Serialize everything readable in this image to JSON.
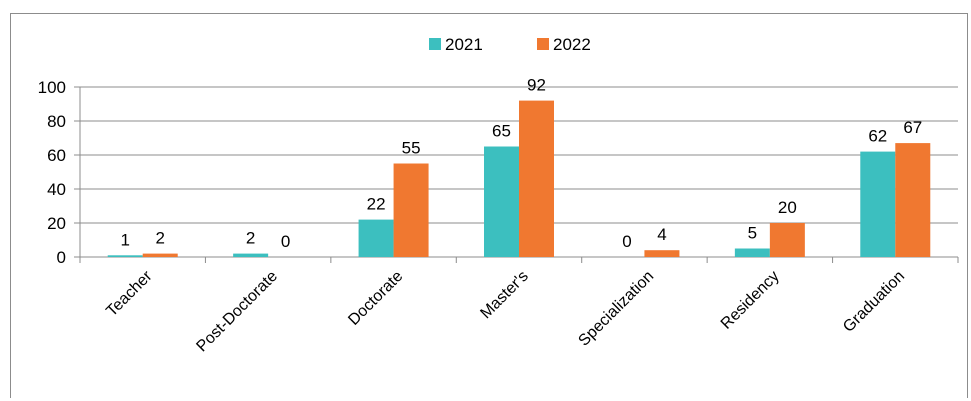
{
  "chart_data": {
    "type": "bar",
    "categories": [
      "Teacher",
      "Post-Doctorate",
      "Doctorate",
      "Master's",
      "Specialization",
      "Residency",
      "Graduation"
    ],
    "series": [
      {
        "name": "2021",
        "color": "#3cbfbf",
        "values": [
          1,
          2,
          22,
          65,
          0,
          5,
          62
        ]
      },
      {
        "name": "2022",
        "color": "#f07830",
        "values": [
          2,
          0,
          55,
          92,
          4,
          20,
          67
        ]
      }
    ],
    "ylim": [
      0,
      100
    ],
    "yticks": [
      0,
      20,
      40,
      60,
      80,
      100
    ],
    "grid": true,
    "legend_position": "top-center",
    "data_labels": true
  }
}
